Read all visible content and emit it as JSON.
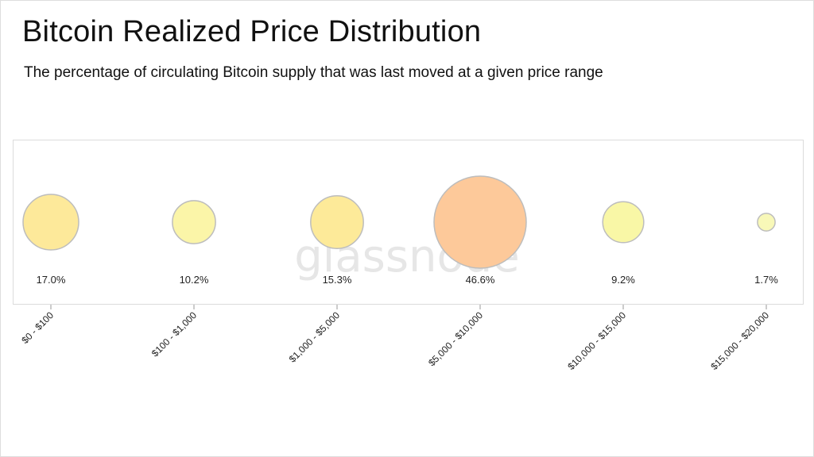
{
  "header": {
    "title": "Bitcoin Realized Price Distribution",
    "subtitle": "The percentage of circulating Bitcoin supply that was last moved at a given price range"
  },
  "watermark": "glassnode",
  "chart_data": {
    "type": "bubble",
    "title": "Bitcoin Realized Price Distribution",
    "subtitle": "The percentage of circulating Bitcoin supply that was last moved at a given price range",
    "unit": "%",
    "categories": [
      "$0 - $100",
      "$100 - $1,000",
      "$1,000 - $5,000",
      "$5,000 - $10,000",
      "$10,000 - $15,000",
      "$15,000 - $20,000"
    ],
    "values": [
      17.0,
      10.2,
      15.3,
      46.6,
      9.2,
      1.7
    ],
    "labels": [
      "17.0%",
      "10.2%",
      "15.3%",
      "46.6%",
      "9.2%",
      "1.7%"
    ],
    "colors": [
      "#fde99a",
      "#fbf5a8",
      "#fdea99",
      "#fdc99a",
      "#f9f7a6",
      "#f8f8b8"
    ],
    "stroke_color": "#bdbdbd",
    "legend": "none",
    "grid": false
  }
}
